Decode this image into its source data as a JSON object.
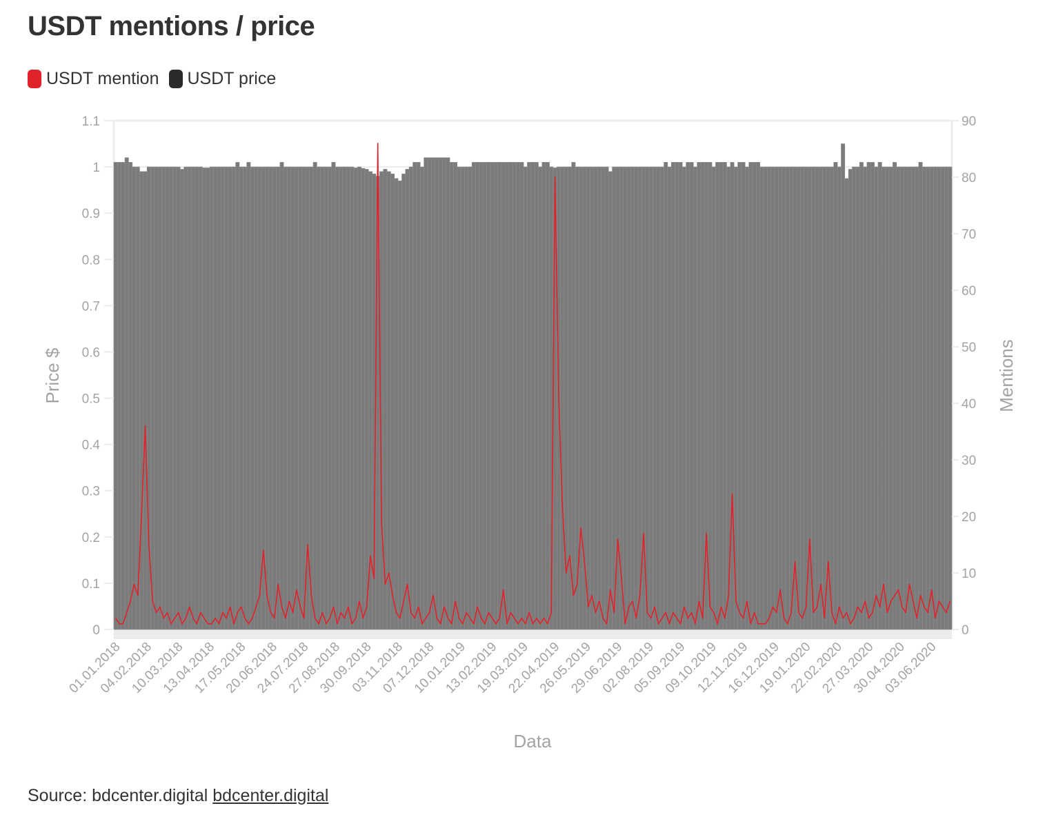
{
  "chart_data": {
    "type": "bar+line",
    "title": "USDT mentions / price",
    "xlabel": "Data",
    "ylabel_left": "Price $",
    "ylabel_right": "Mentions",
    "ylim_left": [
      0,
      1.1
    ],
    "ylim_right": [
      0,
      90
    ],
    "yticks_left": [
      "0",
      "0.1",
      "0.2",
      "0.3",
      "0.4",
      "0.5",
      "0.6",
      "0.7",
      "0.8",
      "0.9",
      "1",
      "1.1"
    ],
    "yticks_right": [
      "0",
      "10",
      "20",
      "30",
      "40",
      "50",
      "60",
      "70",
      "80",
      "90"
    ],
    "xticks": [
      "01.01.2018",
      "04.02.2018",
      "10.03.2018",
      "13.04.2018",
      "17.05.2018",
      "20.06.2018",
      "24.07.2018",
      "27.08.2018",
      "30.09.2018",
      "03.11.2018",
      "07.12.2018",
      "10.01.2019",
      "13.02.2019",
      "19.03.2019",
      "22.04.2019",
      "26.05.2019",
      "29.06.2019",
      "02.08.2019",
      "05.09.2019",
      "09.10.2019",
      "12.11.2019",
      "16.12.2019",
      "19.01.2020",
      "22.02.2020",
      "27.03.2020",
      "30.04.2020",
      "03.06.2020"
    ],
    "x_start": "01.01.2018",
    "x_interval_days": 4,
    "grid": true,
    "legend_position": "top-left",
    "series": [
      {
        "name": "USDT price",
        "kind": "bar",
        "axis": "left",
        "color": "#2b2b2b",
        "fill": "#7b7b7b",
        "values": [
          1.01,
          1.01,
          1.01,
          1.02,
          1.01,
          1.0,
          1.0,
          0.99,
          0.99,
          1.0,
          1.0,
          1.0,
          1.0,
          1.0,
          1.0,
          1.0,
          1.0,
          1.0,
          0.995,
          1.0,
          1.0,
          1.0,
          1.0,
          1.0,
          0.998,
          0.998,
          1.0,
          1.0,
          1.0,
          1.0,
          1.0,
          1.0,
          1.0,
          1.01,
          1.0,
          1.0,
          1.01,
          1.0,
          1.0,
          1.0,
          1.0,
          1.0,
          1.0,
          1.0,
          1.0,
          1.01,
          1.0,
          1.0,
          1.0,
          1.0,
          1.0,
          1.0,
          1.0,
          1.0,
          1.01,
          1.0,
          1.0,
          1.0,
          1.0,
          1.01,
          1.0,
          1.0,
          1.0,
          1.0,
          1.0,
          0.998,
          1.0,
          0.997,
          0.995,
          0.99,
          0.985,
          0.98,
          0.99,
          0.995,
          0.99,
          0.985,
          0.975,
          0.97,
          0.985,
          0.995,
          1.0,
          1.01,
          1.01,
          1.0,
          1.02,
          1.02,
          1.02,
          1.02,
          1.02,
          1.02,
          1.02,
          1.01,
          1.01,
          1.0,
          1.0,
          1.0,
          1.0,
          1.01,
          1.01,
          1.01,
          1.01,
          1.01,
          1.01,
          1.01,
          1.01,
          1.01,
          1.01,
          1.01,
          1.01,
          1.01,
          1.01,
          1.0,
          1.01,
          1.01,
          1.01,
          1.0,
          1.01,
          1.01,
          1.0,
          0.998,
          1.0,
          1.0,
          1.0,
          1.0,
          1.01,
          1.0,
          1.0,
          1.0,
          1.0,
          1.0,
          1.0,
          1.0,
          1.0,
          1.0,
          0.99,
          1.0,
          1.0,
          1.0,
          1.0,
          1.0,
          1.0,
          1.0,
          1.0,
          1.0,
          1.0,
          1.0,
          1.0,
          1.0,
          1.0,
          1.01,
          1.0,
          1.01,
          1.01,
          1.01,
          1.0,
          1.01,
          1.01,
          1.0,
          1.01,
          1.01,
          1.01,
          1.01,
          1.0,
          1.01,
          1.01,
          1.01,
          1.0,
          1.01,
          1.0,
          1.01,
          1.01,
          1.0,
          1.01,
          1.01,
          1.01,
          1.0,
          1.0,
          1.0,
          1.0,
          1.0,
          1.0,
          1.0,
          1.0,
          1.0,
          1.0,
          1.0,
          1.0,
          1.0,
          1.0,
          1.0,
          1.0,
          1.0,
          1.0,
          1.0,
          1.0,
          1.01,
          1.0,
          1.05,
          0.975,
          0.995,
          1.0,
          1.0,
          1.01,
          1.0,
          1.01,
          1.01,
          1.0,
          1.01,
          1.0,
          1.0,
          1.0,
          1.01,
          1.0,
          1.0,
          1.0,
          1.0,
          1.0,
          1.0,
          1.01,
          1.0,
          1.0,
          1.0,
          1.0,
          1.0,
          1.0,
          1.0,
          1.0
        ]
      },
      {
        "name": "USDT mention",
        "kind": "line",
        "axis": "right",
        "color": "#e0222b",
        "values": [
          2,
          1,
          1,
          3,
          5,
          8,
          6,
          20,
          36,
          15,
          5,
          3,
          4,
          2,
          3,
          1,
          2,
          3,
          1,
          2,
          4,
          2,
          1,
          3,
          2,
          1,
          1,
          2,
          1,
          3,
          2,
          4,
          1,
          3,
          4,
          2,
          1,
          2,
          4,
          6,
          14,
          6,
          3,
          2,
          8,
          4,
          2,
          5,
          3,
          7,
          4,
          2,
          15,
          6,
          2,
          1,
          3,
          1,
          2,
          4,
          1,
          3,
          2,
          4,
          1,
          2,
          5,
          2,
          4,
          13,
          9,
          86,
          19,
          8,
          10,
          6,
          3,
          2,
          5,
          8,
          3,
          2,
          4,
          1,
          2,
          3,
          6,
          2,
          1,
          4,
          2,
          1,
          5,
          2,
          1,
          3,
          2,
          1,
          4,
          2,
          1,
          3,
          2,
          1,
          2,
          7,
          1,
          3,
          2,
          1,
          2,
          1,
          3,
          1,
          2,
          1,
          2,
          1,
          3,
          80,
          41,
          22,
          10,
          13,
          6,
          8,
          18,
          12,
          4,
          6,
          3,
          5,
          2,
          1,
          7,
          3,
          16,
          9,
          1,
          4,
          5,
          2,
          6,
          17,
          3,
          2,
          4,
          1,
          2,
          3,
          1,
          3,
          2,
          1,
          4,
          2,
          3,
          1,
          5,
          2,
          17,
          4,
          3,
          1,
          4,
          2,
          6,
          24,
          5,
          3,
          2,
          5,
          1,
          3,
          1,
          1,
          1,
          2,
          4,
          3,
          7,
          2,
          1,
          3,
          12,
          3,
          2,
          4,
          16,
          3,
          4,
          8,
          2,
          12,
          3,
          1,
          4,
          2,
          3,
          1,
          2,
          4,
          3,
          5,
          2,
          3,
          6,
          4,
          8,
          3,
          5,
          6,
          7,
          4,
          3,
          8,
          5,
          2,
          6,
          4,
          3,
          7,
          2,
          5,
          4,
          3,
          5
        ]
      }
    ]
  },
  "legend": {
    "items": [
      {
        "label": "USDT mention",
        "color": "#e0222b"
      },
      {
        "label": "USDT price",
        "color": "#2b2b2b"
      }
    ]
  },
  "source": {
    "prefix": "Source: bdcenter.digital",
    "link": "bdcenter.digital"
  }
}
